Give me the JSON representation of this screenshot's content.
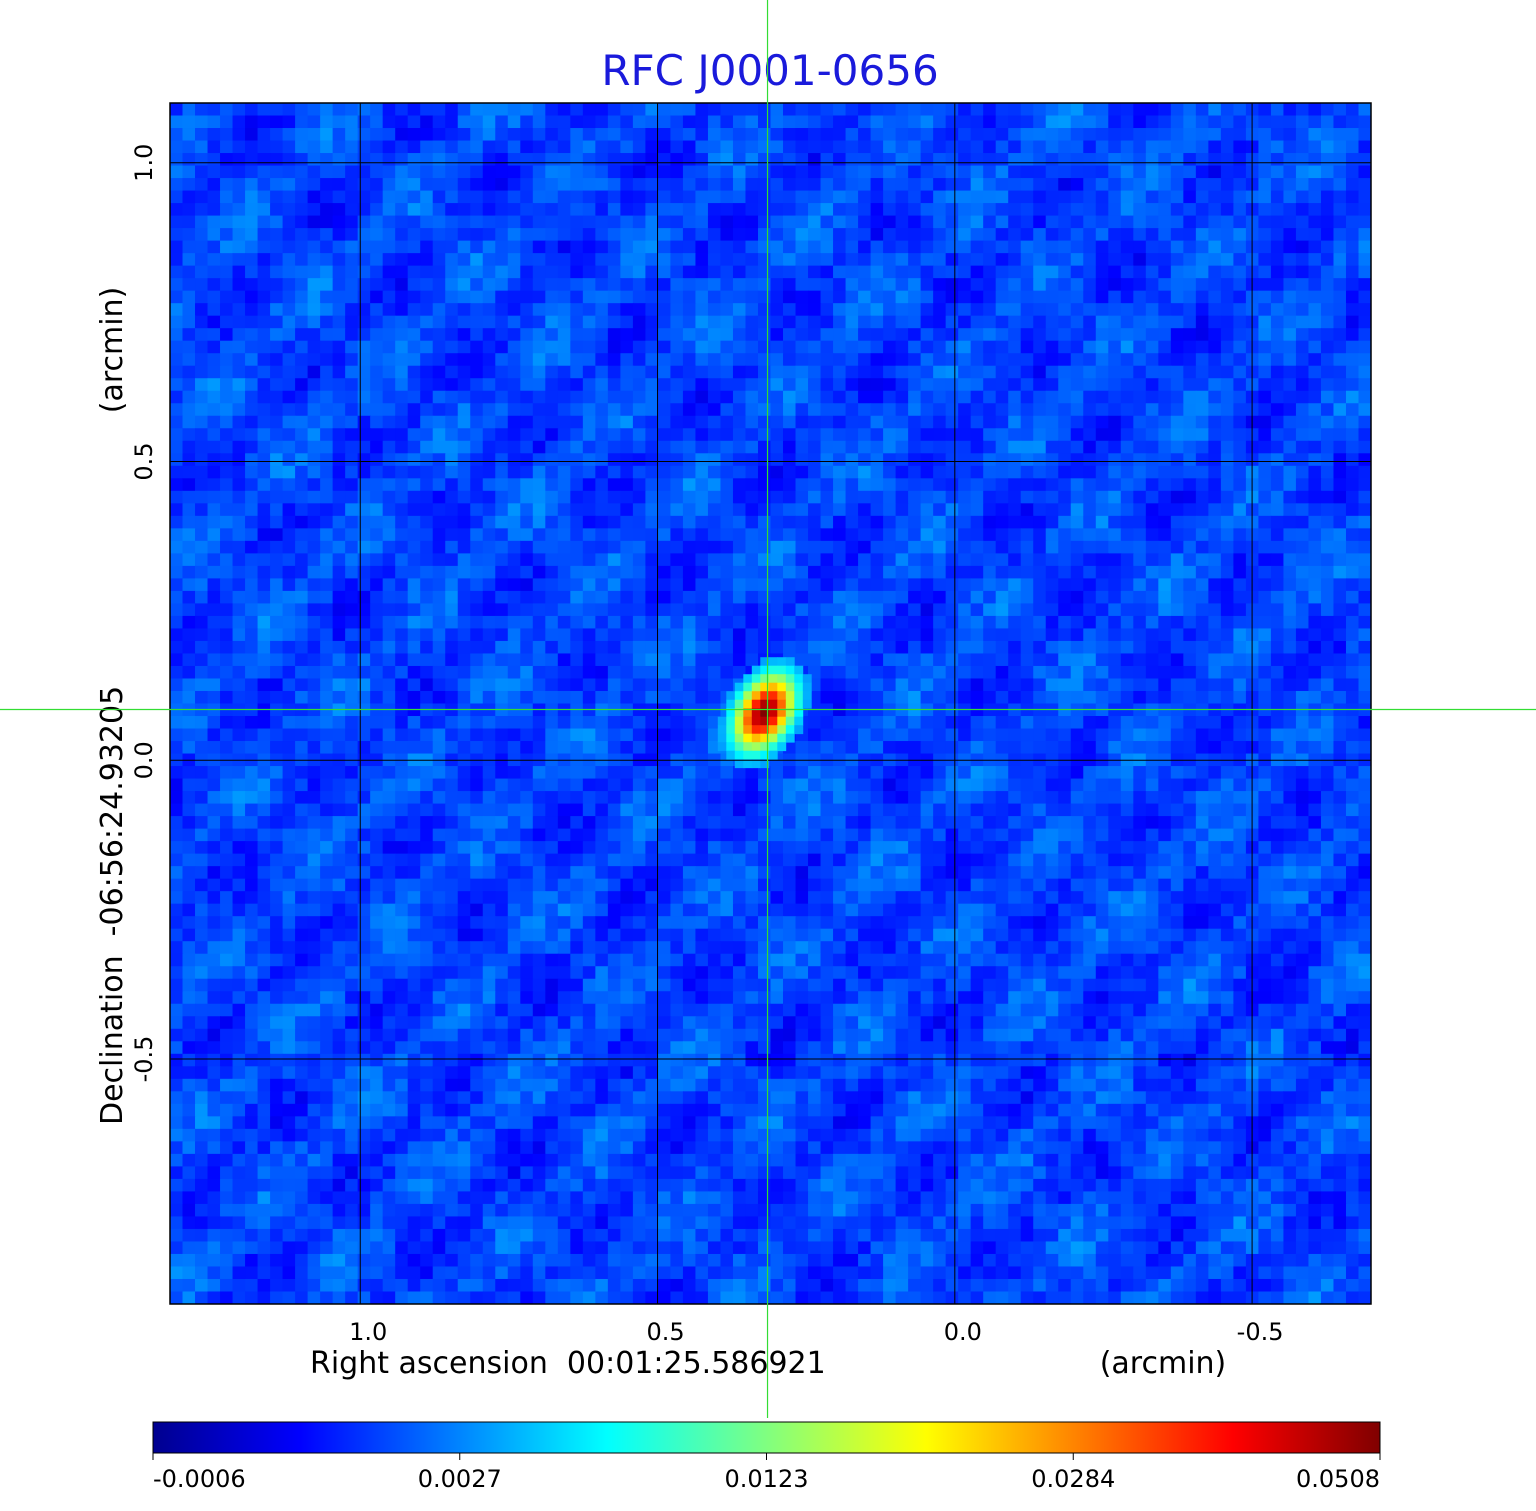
{
  "chart_data": {
    "type": "heatmap",
    "title": "RFC J0001-0656",
    "xlabel": "Right ascension  00:01:25.586921",
    "xunit": "(arcmin)",
    "ylabel": "Declination  -06:56:24.93205",
    "yunit": "(arcmin)",
    "x_ticks": [
      "1.0",
      "0.5",
      "0.0",
      "-0.5"
    ],
    "y_ticks": [
      "1.0",
      "0.5",
      "0.0",
      "-0.5"
    ],
    "xlim": [
      1.32,
      -0.7
    ],
    "ylim": [
      -0.91,
      1.1
    ],
    "x_axis_reversed": true,
    "grid": true,
    "colormap": "jet",
    "colorbar_ticks": [
      "-0.0006",
      "0.0027",
      "0.0123",
      "0.0284",
      "0.0508"
    ],
    "value_range": [
      -0.0006,
      0.0508
    ],
    "peak": {
      "x": 0.32,
      "y": 0.08,
      "value": 0.0508
    },
    "crosshair": {
      "x": 0.315,
      "y": 0.085
    },
    "colors": {
      "title": "#1a1adb",
      "crosshair": "#33dd33",
      "grid": "#000000",
      "background_noise": "#1740f0"
    }
  }
}
